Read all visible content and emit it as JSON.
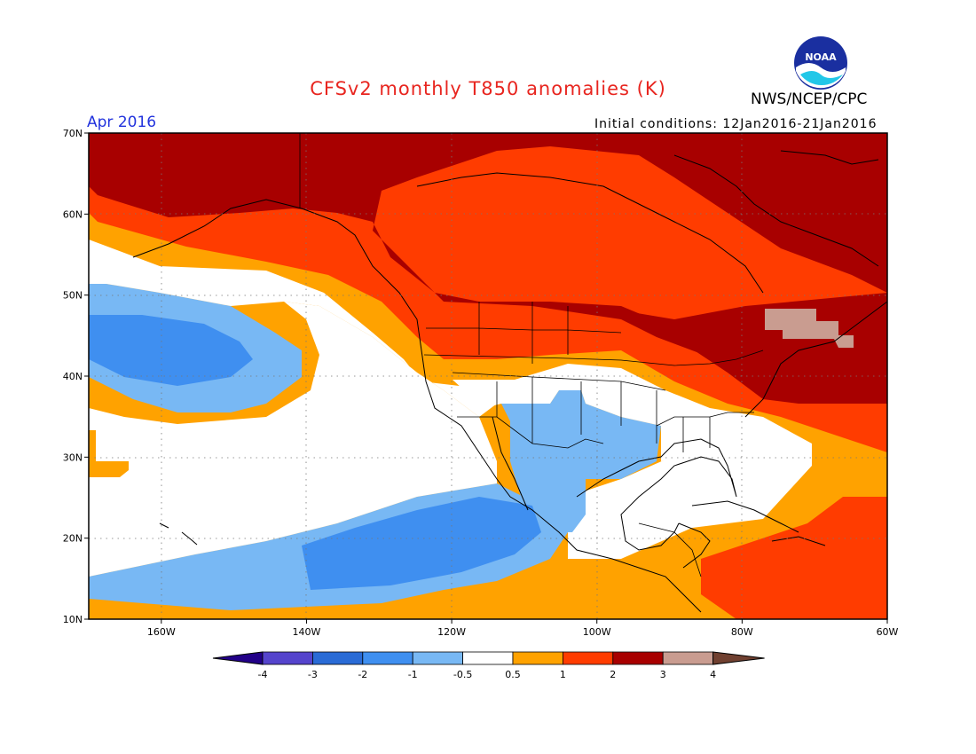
{
  "title": "CFSv2 monthly T850 anomalies (K)",
  "agency": "NWS/NCEP/CPC",
  "logo_text": "NOAA",
  "forecast_month": "Apr 2016",
  "initial_conditions": "Initial conditions: 12Jan2016-21Jan2016",
  "map": {
    "lon_range": [
      -170,
      -60
    ],
    "lat_range": [
      10,
      70
    ],
    "lat_labels": [
      "70N",
      "60N",
      "50N",
      "40N",
      "30N",
      "20N",
      "10N"
    ],
    "lon_labels": [
      "160W",
      "140W",
      "120W",
      "100W",
      "80W",
      "60W"
    ],
    "lat_ticks": [
      70,
      60,
      50,
      40,
      30,
      20,
      10
    ],
    "lon_ticks": [
      -160,
      -140,
      -120,
      -100,
      -80,
      -60
    ]
  },
  "colorbar": {
    "labels": [
      "-4",
      "-3",
      "-2",
      "-1",
      "-0.5",
      "0.5",
      "1",
      "2",
      "3",
      "4"
    ],
    "colors": [
      "#220088",
      "#5544cc",
      "#2a6bd6",
      "#3f8ff0",
      "#78b8f4",
      "#ffffff",
      "#ffa200",
      "#ff3c00",
      "#a80000",
      "#c99c90",
      "#704030"
    ]
  },
  "colors": {
    "title": "#e8251f",
    "month": "#2233dd",
    "neg1": "#78b8f4",
    "neg2": "#3f8ff0",
    "pos05": "#ffa200",
    "pos1": "#ff3c00",
    "pos2": "#a80000",
    "pos3": "#c99c90"
  }
}
